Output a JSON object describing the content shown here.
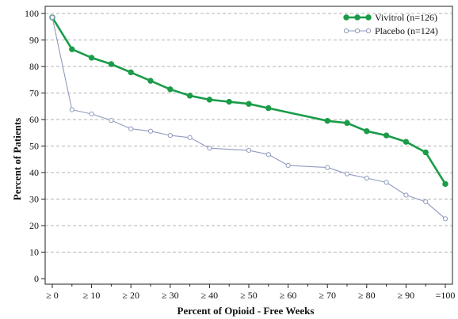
{
  "chart_data": {
    "type": "line",
    "xlabel": "Percent of Opioid - Free Weeks",
    "ylabel": "Percent of Patients",
    "ylim": [
      0,
      100
    ],
    "y_ticks": [
      0,
      10,
      20,
      30,
      40,
      50,
      60,
      70,
      80,
      90,
      100
    ],
    "x_tick_labels": [
      "≥ 0",
      "≥ 10",
      "≥ 20",
      "≥ 30",
      "≥ 40",
      "≥ 50",
      "≥ 60",
      "≥ 70",
      "≥ 80",
      "≥ 90",
      "=100"
    ],
    "x_tick_values": [
      0,
      10,
      20,
      30,
      40,
      50,
      60,
      70,
      80,
      90,
      100
    ],
    "xlim": [
      0,
      100
    ],
    "grid": "horizontal-dashed",
    "legend_position": "top-right",
    "series": [
      {
        "name": "Vivitrol  (n=126)",
        "color": "#1a9c49",
        "marker": "filled",
        "x": [
          0,
          5,
          10,
          15,
          20,
          25,
          30,
          35,
          40,
          45,
          50,
          55,
          70,
          75,
          80,
          85,
          90,
          95,
          100
        ],
        "values": [
          98.5,
          86.5,
          83.3,
          80.9,
          77.8,
          74.6,
          71.4,
          69.0,
          67.5,
          66.7,
          65.9,
          64.3,
          59.5,
          58.7,
          55.6,
          54.0,
          51.6,
          47.6,
          35.7
        ]
      },
      {
        "name": "Placebo  (n=124)",
        "color": "#8f9bbd",
        "marker": "open",
        "x": [
          0,
          5,
          10,
          15,
          20,
          25,
          30,
          35,
          40,
          50,
          55,
          60,
          70,
          75,
          80,
          85,
          90,
          95,
          100
        ],
        "values": [
          98.5,
          63.7,
          62.1,
          59.7,
          56.5,
          55.6,
          54.0,
          53.2,
          49.2,
          48.4,
          46.8,
          42.7,
          41.9,
          39.5,
          37.9,
          36.3,
          31.5,
          29.0,
          22.6
        ]
      }
    ]
  }
}
